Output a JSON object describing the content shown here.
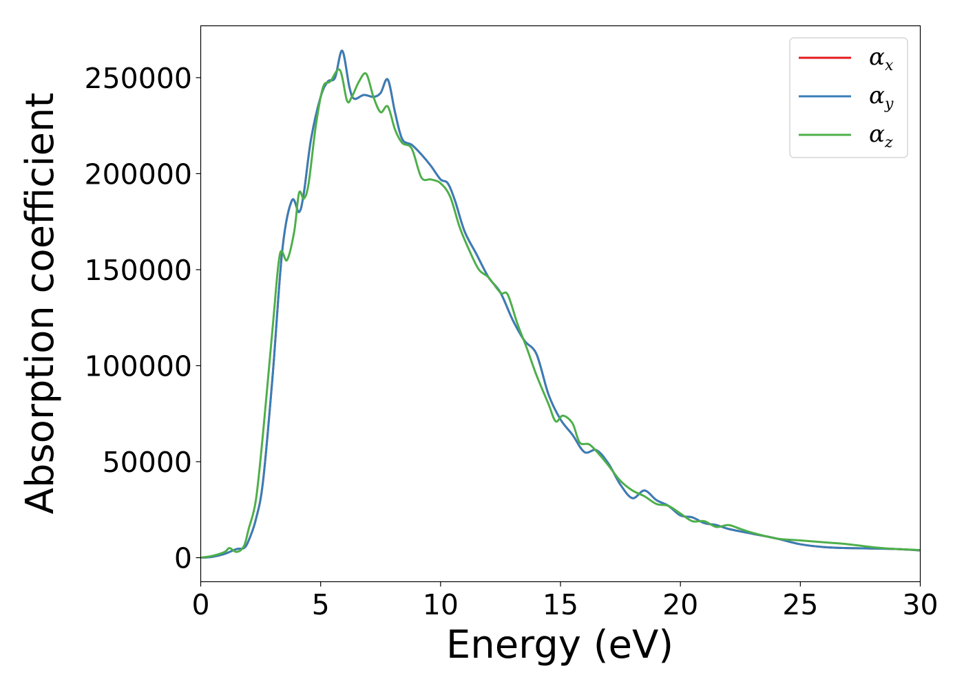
{
  "chart_data": {
    "type": "line",
    "title": "",
    "xlabel": "Energy (eV)",
    "ylabel": "Absorption coefficient",
    "xlim": [
      0,
      30
    ],
    "ylim": [
      -12500,
      277000
    ],
    "xticks": [
      "0",
      "5",
      "10",
      "15",
      "20",
      "25",
      "30"
    ],
    "yticks": [
      "0",
      "50000",
      "100000",
      "150000",
      "200000",
      "250000"
    ],
    "grid": false,
    "legend_position": "top-right",
    "series": [
      {
        "name": "αx",
        "symbol": "α",
        "subscript": "x",
        "color": "#e41a1c",
        "x": [
          0,
          0.5,
          1.0,
          1.5,
          1.8,
          2.0,
          2.3,
          2.6,
          3.0,
          3.4,
          3.8,
          4.1,
          4.3,
          4.6,
          5.0,
          5.3,
          5.6,
          5.9,
          6.2,
          6.4,
          6.8,
          7.2,
          7.5,
          7.8,
          8.1,
          8.4,
          8.8,
          9.2,
          9.6,
          10.0,
          10.3,
          10.6,
          11.0,
          11.5,
          12.0,
          12.5,
          13.0,
          13.5,
          14.0,
          14.5,
          15.0,
          15.5,
          16.0,
          16.5,
          17.0,
          17.5,
          18.0,
          18.5,
          19.0,
          19.5,
          20.0,
          20.5,
          21.0,
          21.5,
          22.0,
          23.0,
          24.0,
          25.0,
          26.0,
          27.0,
          28.0,
          29.0,
          30.0
        ],
        "y": [
          0,
          500,
          2000,
          4500,
          5000,
          9000,
          20000,
          40000,
          95000,
          160000,
          186000,
          180000,
          190000,
          218000,
          240000,
          248000,
          250000,
          264000,
          245000,
          239000,
          241000,
          240000,
          242000,
          249000,
          232000,
          218000,
          215000,
          210000,
          204000,
          197000,
          195000,
          186000,
          170000,
          158000,
          146000,
          138000,
          124000,
          113000,
          106000,
          85000,
          72000,
          64000,
          55000,
          56000,
          49000,
          38000,
          31000,
          35000,
          30000,
          27000,
          22000,
          21000,
          18000,
          17000,
          15000,
          12500,
          10000,
          7000,
          5500,
          5000,
          4800,
          4500,
          3800
        ]
      },
      {
        "name": "αy",
        "symbol": "α",
        "subscript": "y",
        "color": "#377eb8",
        "x": [
          0,
          0.5,
          1.0,
          1.5,
          1.8,
          2.0,
          2.3,
          2.6,
          3.0,
          3.4,
          3.8,
          4.1,
          4.3,
          4.6,
          5.0,
          5.3,
          5.6,
          5.9,
          6.2,
          6.4,
          6.8,
          7.2,
          7.5,
          7.8,
          8.1,
          8.4,
          8.8,
          9.2,
          9.6,
          10.0,
          10.3,
          10.6,
          11.0,
          11.5,
          12.0,
          12.5,
          13.0,
          13.5,
          14.0,
          14.5,
          15.0,
          15.5,
          16.0,
          16.5,
          17.0,
          17.5,
          18.0,
          18.5,
          19.0,
          19.5,
          20.0,
          20.5,
          21.0,
          21.5,
          22.0,
          23.0,
          24.0,
          25.0,
          26.0,
          27.0,
          28.0,
          29.0,
          30.0
        ],
        "y": [
          0,
          500,
          2000,
          4500,
          5000,
          9000,
          20000,
          40000,
          95000,
          160000,
          186000,
          180000,
          190000,
          218000,
          240000,
          248000,
          250000,
          264000,
          245000,
          239000,
          241000,
          240000,
          242000,
          249000,
          232000,
          218000,
          215000,
          210000,
          204000,
          197000,
          195000,
          186000,
          170000,
          158000,
          146000,
          138000,
          124000,
          113000,
          106000,
          85000,
          72000,
          64000,
          55000,
          56000,
          49000,
          38000,
          31000,
          35000,
          30000,
          27000,
          22000,
          21000,
          18000,
          17000,
          15000,
          12500,
          10000,
          7000,
          5500,
          5000,
          4800,
          4500,
          3800
        ]
      },
      {
        "name": "αz",
        "symbol": "α",
        "subscript": "z",
        "color": "#4daf4a",
        "x": [
          0,
          0.5,
          1.0,
          1.2,
          1.5,
          1.8,
          2.0,
          2.3,
          2.6,
          3.0,
          3.3,
          3.6,
          3.9,
          4.1,
          4.3,
          4.5,
          4.8,
          5.1,
          5.4,
          5.8,
          6.1,
          6.3,
          6.6,
          6.9,
          7.2,
          7.5,
          7.8,
          8.1,
          8.4,
          8.8,
          9.2,
          9.6,
          10.0,
          10.4,
          10.8,
          11.2,
          11.6,
          12.0,
          12.5,
          12.8,
          13.2,
          13.6,
          14.0,
          14.5,
          14.8,
          15.1,
          15.5,
          15.8,
          16.2,
          16.6,
          17.0,
          17.5,
          18.0,
          18.5,
          19.0,
          19.5,
          20.0,
          20.5,
          21.0,
          21.5,
          22.0,
          22.5,
          23.0,
          24.0,
          25.0,
          26.0,
          27.0,
          28.0,
          29.0,
          30.0
        ],
        "y": [
          0,
          1000,
          3000,
          5000,
          3000,
          6000,
          15000,
          30000,
          65000,
          120000,
          158000,
          155000,
          170000,
          190000,
          187000,
          195000,
          225000,
          245000,
          248000,
          254000,
          238000,
          240000,
          248000,
          252000,
          240000,
          232000,
          235000,
          223000,
          216000,
          213000,
          198000,
          197000,
          195000,
          188000,
          172000,
          160000,
          150000,
          146000,
          138000,
          137000,
          122000,
          109000,
          95000,
          80000,
          71000,
          74000,
          70000,
          60000,
          59000,
          54000,
          48000,
          40000,
          35000,
          32000,
          28000,
          27000,
          23000,
          19000,
          19000,
          16000,
          17000,
          15000,
          13000,
          10000,
          9000,
          8000,
          7000,
          5500,
          4500,
          4000
        ]
      }
    ]
  }
}
